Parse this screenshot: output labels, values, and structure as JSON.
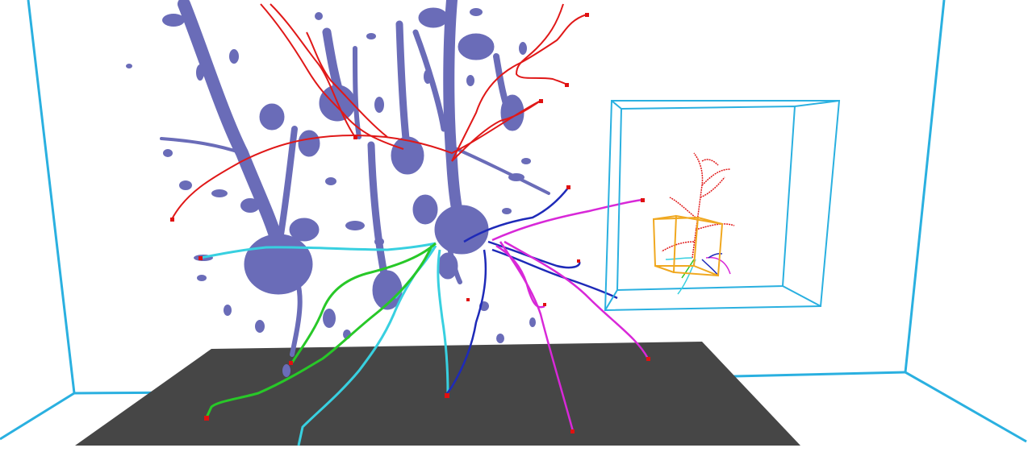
{
  "scene": {
    "subject": "3d-neuron-reconstruction",
    "colors": {
      "background": "#ffffff",
      "room_edges": "#2ab0e0",
      "floor": "#464646",
      "neuron_volume": "#6a6cb8",
      "neuron_volume_dark": "#4e4f96",
      "trace_red": "#e01818",
      "trace_cyan": "#38d0e0",
      "trace_green": "#28c828",
      "trace_blue": "#1e2ab8",
      "trace_magenta": "#d828d8",
      "inset_box": "#f0a820",
      "endpoint": "#e01010"
    },
    "elements": [
      "room-wireframe",
      "floor-plane",
      "neuron-volume-render",
      "neurite-traces",
      "inset-overview-box"
    ]
  }
}
